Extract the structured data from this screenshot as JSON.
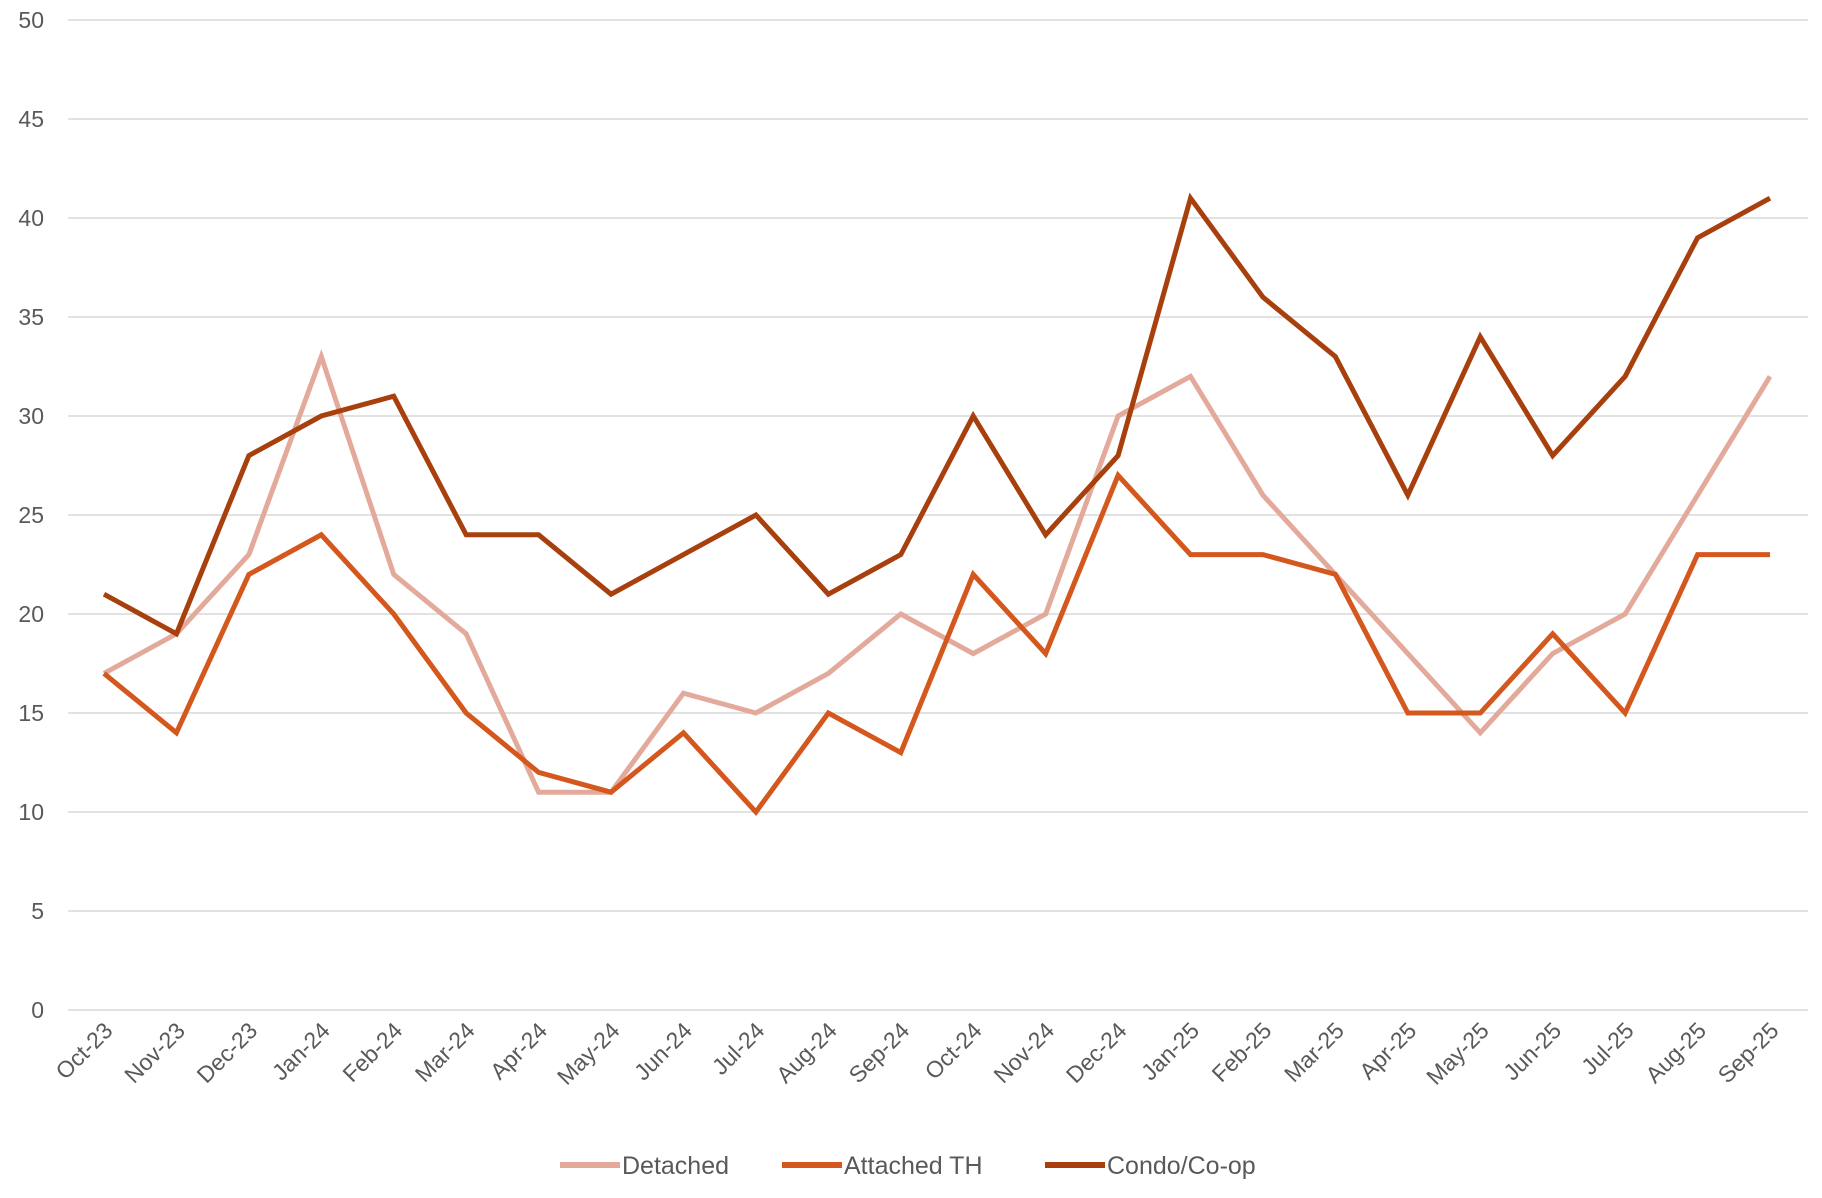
{
  "chart_data": {
    "type": "line",
    "title": "",
    "xlabel": "",
    "ylabel": "",
    "ylim": [
      0,
      50
    ],
    "yticks": [
      0,
      5,
      10,
      15,
      20,
      25,
      30,
      35,
      40,
      45,
      50
    ],
    "grid": true,
    "legend_position": "bottom",
    "categories": [
      "Oct-23",
      "Nov-23",
      "Dec-23",
      "Jan-24",
      "Feb-24",
      "Mar-24",
      "Apr-24",
      "May-24",
      "Jun-24",
      "Jul-24",
      "Aug-24",
      "Sep-24",
      "Oct-24",
      "Nov-24",
      "Dec-24",
      "Jan-25",
      "Feb-25",
      "Mar-25",
      "Apr-25",
      "May-25",
      "Jun-25",
      "Jul-25",
      "Aug-25",
      "Sep-25"
    ],
    "series": [
      {
        "name": "Detached",
        "color": "#E3AA9C",
        "values": [
          17,
          19,
          23,
          33,
          22,
          19,
          11,
          11,
          16,
          15,
          17,
          20,
          18,
          20,
          30,
          32,
          26,
          22,
          18,
          14,
          18,
          20,
          26,
          32
        ]
      },
      {
        "name": "Attached TH",
        "color": "#D4581E",
        "values": [
          17,
          14,
          22,
          24,
          20,
          15,
          12,
          11,
          14,
          10,
          15,
          13,
          22,
          18,
          27,
          23,
          23,
          22,
          15,
          15,
          19,
          15,
          23,
          23
        ]
      },
      {
        "name": "Condo/Co-op",
        "color": "#A8400E",
        "values": [
          21,
          19,
          28,
          30,
          31,
          24,
          24,
          21,
          23,
          25,
          21,
          23,
          30,
          24,
          28,
          41,
          36,
          33,
          26,
          34,
          28,
          32,
          39,
          41
        ]
      }
    ]
  }
}
